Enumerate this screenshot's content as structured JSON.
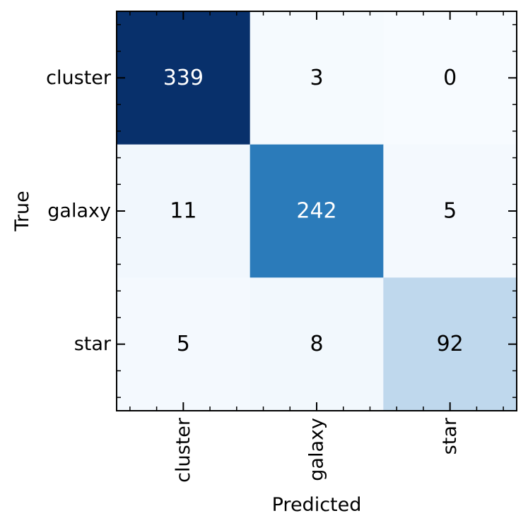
{
  "chart_data": {
    "type": "heatmap",
    "xlabel": "Predicted",
    "ylabel": "True",
    "x_categories": [
      "cluster",
      "galaxy",
      "star"
    ],
    "y_categories": [
      "cluster",
      "galaxy",
      "star"
    ],
    "values": [
      [
        339,
        3,
        0
      ],
      [
        11,
        242,
        5
      ],
      [
        5,
        8,
        92
      ]
    ],
    "colormap": "Blues",
    "color_low": "#f7fbff",
    "color_high": "#08306b",
    "text_color_dark_cells": "#ffffff",
    "text_color_light_cells": "#000000",
    "grid": false,
    "legend": "none"
  }
}
